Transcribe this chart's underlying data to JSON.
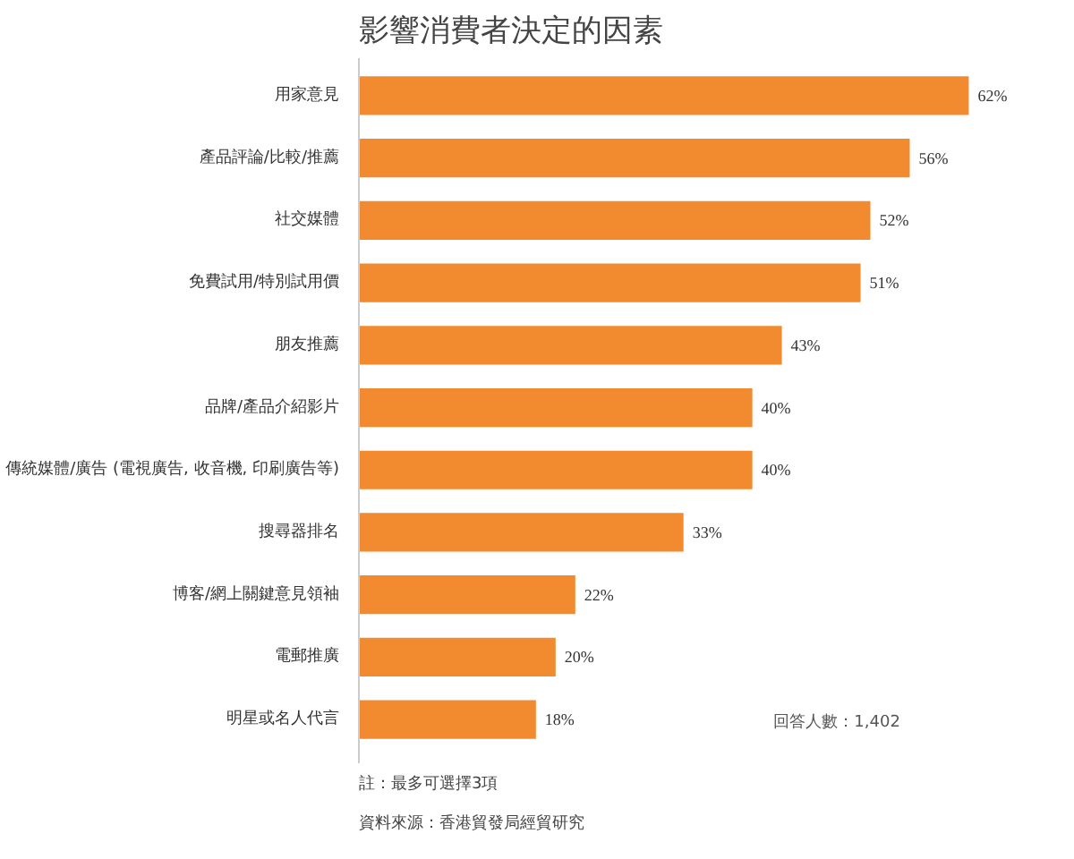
{
  "chart_data": {
    "type": "bar",
    "orientation": "horizontal",
    "title": "影響消費者決定的因素",
    "categories": [
      "用家意見",
      "產品評論/比較/推薦",
      "社交媒體",
      "免費試用/特別試用價",
      "朋友推薦",
      "品牌/產品介紹影片",
      "傳統媒體/廣告 (電視廣告, 收音機, 印刷廣告等)",
      "搜尋器排名",
      "博客/網上關鍵意見領袖",
      "電郵推廣",
      "明星或名人代言"
    ],
    "values": [
      62,
      56,
      52,
      51,
      43,
      40,
      40,
      33,
      22,
      20,
      18
    ],
    "value_labels": [
      "62%",
      "56%",
      "52%",
      "51%",
      "43%",
      "40%",
      "40%",
      "33%",
      "22%",
      "20%",
      "18%"
    ],
    "color": "#f28a30",
    "annotations": [
      "回答人數：1,402",
      "註：最多可選擇3項",
      "資料來源：香港貿發局經貿研究"
    ]
  }
}
